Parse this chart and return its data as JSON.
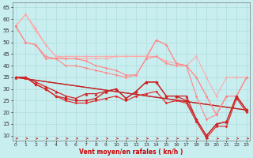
{
  "background_color": "#c8eef0",
  "grid_color": "#aad8d8",
  "ylim": [
    8,
    67
  ],
  "xlim": [
    -0.3,
    23.3
  ],
  "yticks": [
    10,
    15,
    20,
    25,
    30,
    35,
    40,
    45,
    50,
    55,
    60,
    65
  ],
  "xticks": [
    0,
    1,
    2,
    3,
    4,
    5,
    6,
    7,
    8,
    9,
    10,
    11,
    12,
    13,
    14,
    15,
    16,
    17,
    18,
    19,
    20,
    21,
    22,
    23
  ],
  "xlabel": "Vent moyen/en rafales ( kn/h )",
  "series": [
    {
      "x": [
        0,
        1,
        2,
        3,
        4,
        5,
        6,
        7,
        8,
        9,
        10,
        11,
        12,
        13,
        14,
        15,
        16,
        17,
        18,
        19,
        20,
        21,
        22,
        23
      ],
      "y": [
        57,
        62,
        56,
        49,
        44,
        44,
        44,
        44,
        44,
        44,
        44,
        44,
        44,
        44,
        51,
        49,
        41,
        40,
        44,
        35,
        27,
        35,
        35,
        35
      ],
      "color": "#ffaaaa",
      "lw": 0.8,
      "marker": "D",
      "ms": 1.5
    },
    {
      "x": [
        0,
        1,
        2,
        3,
        4,
        5,
        6,
        7,
        8,
        9,
        10,
        11,
        12,
        13,
        14,
        15,
        16,
        17,
        18,
        19,
        20,
        21,
        22,
        23
      ],
      "y": [
        57,
        62,
        55,
        49,
        44,
        43,
        43,
        43,
        43,
        43,
        44,
        44,
        44,
        44,
        44,
        42,
        41,
        40,
        35,
        27,
        19,
        27,
        27,
        35
      ],
      "color": "#ffaaaa",
      "lw": 0.8,
      "marker": "D",
      "ms": 1.5
    },
    {
      "x": [
        0,
        1,
        2,
        3,
        4,
        5,
        6,
        7,
        8,
        9,
        10,
        11,
        12,
        13,
        14,
        15,
        16,
        17,
        18,
        19,
        20,
        21,
        22,
        23
      ],
      "y": [
        57,
        50,
        49,
        44,
        43,
        43,
        43,
        42,
        40,
        39,
        38,
        36,
        36,
        43,
        51,
        49,
        41,
        40,
        35,
        27,
        19,
        27,
        27,
        35
      ],
      "color": "#ff8888",
      "lw": 0.8,
      "marker": "D",
      "ms": 1.5
    },
    {
      "x": [
        0,
        1,
        2,
        3,
        4,
        5,
        6,
        7,
        8,
        9,
        10,
        11,
        12,
        13,
        14,
        15,
        16,
        17,
        18,
        19,
        20,
        21,
        22,
        23
      ],
      "y": [
        57,
        50,
        49,
        43,
        43,
        40,
        40,
        39,
        38,
        37,
        36,
        35,
        36,
        43,
        44,
        41,
        40,
        40,
        27,
        17,
        19,
        27,
        27,
        35
      ],
      "color": "#ff8888",
      "lw": 0.8,
      "marker": "D",
      "ms": 1.5
    },
    {
      "x": [
        0,
        23
      ],
      "y": [
        35,
        21
      ],
      "color": "#dd4444",
      "lw": 0.9,
      "marker": null,
      "ms": 0
    },
    {
      "x": [
        0,
        23
      ],
      "y": [
        35,
        21
      ],
      "color": "#bb2222",
      "lw": 0.9,
      "marker": null,
      "ms": 0
    },
    {
      "x": [
        0,
        1,
        2,
        3,
        4,
        5,
        6,
        7,
        8,
        9,
        10,
        11,
        12,
        13,
        14,
        15,
        16,
        17,
        18,
        19,
        20,
        21,
        22,
        23
      ],
      "y": [
        35,
        35,
        32,
        30,
        27,
        26,
        25,
        25,
        26,
        29,
        30,
        26,
        29,
        33,
        33,
        27,
        27,
        25,
        17,
        10,
        15,
        16,
        27,
        21
      ],
      "color": "#cc2222",
      "lw": 0.9,
      "marker": "D",
      "ms": 1.8
    },
    {
      "x": [
        0,
        1,
        2,
        3,
        4,
        5,
        6,
        7,
        8,
        9,
        10,
        11,
        12,
        13,
        14,
        15,
        16,
        17,
        18,
        19,
        20,
        21,
        22,
        23
      ],
      "y": [
        35,
        35,
        33,
        31,
        29,
        27,
        26,
        28,
        28,
        29,
        30,
        26,
        29,
        33,
        33,
        27,
        27,
        27,
        17,
        10,
        15,
        16,
        27,
        21
      ],
      "color": "#cc2222",
      "lw": 0.9,
      "marker": "^",
      "ms": 2.5
    },
    {
      "x": [
        0,
        1,
        2,
        3,
        4,
        5,
        6,
        7,
        8,
        9,
        10,
        11,
        12,
        13,
        14,
        15,
        16,
        17,
        18,
        19,
        20,
        21,
        22,
        23
      ],
      "y": [
        35,
        35,
        32,
        30,
        27,
        25,
        24,
        24,
        25,
        26,
        27,
        25,
        27,
        28,
        29,
        24,
        25,
        24,
        16,
        9,
        14,
        14,
        26,
        20
      ],
      "color": "#dd2222",
      "lw": 0.8,
      "marker": "D",
      "ms": 1.5
    }
  ]
}
